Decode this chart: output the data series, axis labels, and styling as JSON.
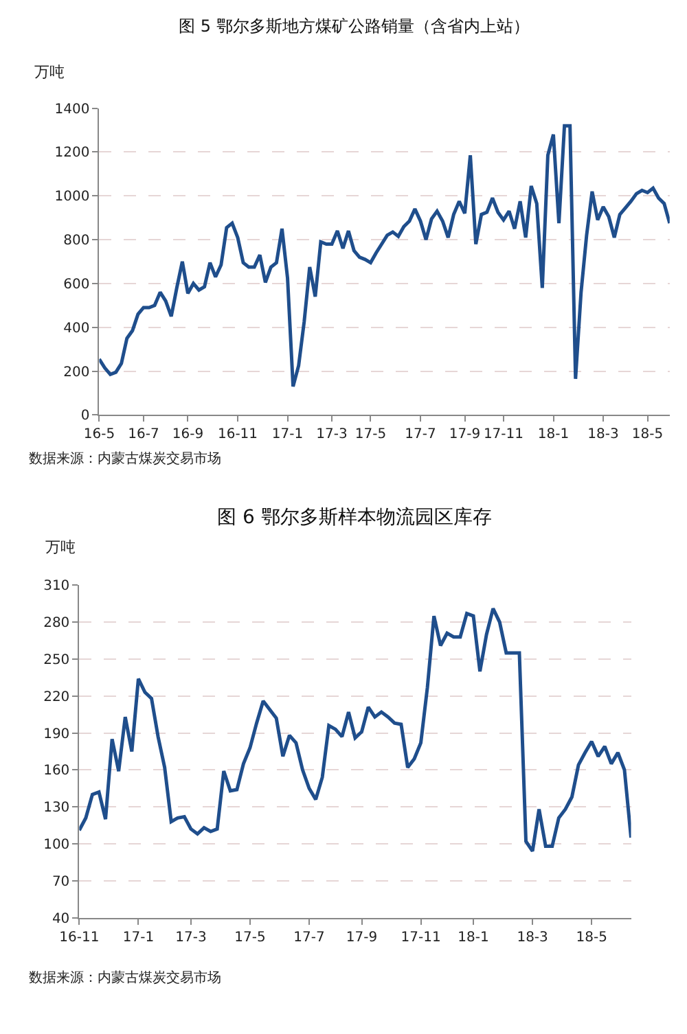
{
  "chart_data": [
    {
      "type": "line",
      "title": "图 5 鄂尔多斯地方煤矿公路销量（含省内上站）",
      "ylabel": "万吨",
      "annotations": [
        "数据来源：内蒙古煤炭交易市场"
      ],
      "grid": "y",
      "ylim": [
        0,
        1400
      ],
      "yticks": [
        0,
        200,
        400,
        600,
        800,
        1000,
        1200,
        1400
      ],
      "categories": [
        "16-5",
        null,
        null,
        null,
        null,
        null,
        null,
        null,
        "16-7",
        null,
        null,
        null,
        null,
        null,
        null,
        null,
        "16-9",
        null,
        null,
        null,
        null,
        null,
        null,
        null,
        null,
        "16-11",
        null,
        null,
        null,
        null,
        null,
        null,
        null,
        null,
        "17-1",
        null,
        null,
        null,
        null,
        null,
        null,
        null,
        "17-3",
        null,
        null,
        null,
        null,
        null,
        null,
        "17-5",
        null,
        null,
        null,
        null,
        null,
        null,
        null,
        null,
        "17-7",
        null,
        null,
        null,
        null,
        null,
        null,
        null,
        "17-9",
        null,
        null,
        null,
        null,
        null,
        null,
        "17-11",
        null,
        null,
        null,
        null,
        null,
        null,
        null,
        null,
        "18-1",
        null,
        null,
        null,
        null,
        null,
        null,
        null,
        null,
        "18-3",
        null,
        null,
        null,
        null,
        null,
        null,
        null,
        "18-5",
        null,
        null,
        null,
        null
      ],
      "series": [
        {
          "color": "#1f4e8c",
          "values": [
            255,
            215,
            185,
            195,
            235,
            350,
            385,
            460,
            490,
            490,
            500,
            560,
            520,
            450,
            580,
            700,
            555,
            600,
            570,
            585,
            695,
            630,
            685,
            855,
            875,
            810,
            695,
            675,
            675,
            730,
            605,
            675,
            695,
            850,
            625,
            130,
            225,
            425,
            675,
            540,
            790,
            780,
            780,
            840,
            760,
            840,
            750,
            720,
            710,
            695,
            740,
            780,
            820,
            835,
            815,
            860,
            885,
            940,
            885,
            800,
            895,
            930,
            885,
            810,
            915,
            975,
            920,
            1185,
            780,
            915,
            925,
            990,
            925,
            890,
            930,
            850,
            975,
            810,
            1045,
            965,
            580,
            1185,
            1280,
            875,
            1320,
            1320,
            165,
            560,
            820,
            1020,
            890,
            950,
            905,
            810,
            915,
            945,
            975,
            1010,
            1025,
            1015,
            1035,
            990,
            965,
            875
          ]
        }
      ]
    },
    {
      "type": "line",
      "title": "图 6 鄂尔多斯样本物流园区库存",
      "ylabel": "万吨",
      "annotations": [
        "数据来源：内蒙古煤炭交易市场"
      ],
      "grid": "y",
      "ylim": [
        40,
        310
      ],
      "yticks": [
        40,
        70,
        100,
        130,
        160,
        190,
        220,
        250,
        280,
        310
      ],
      "categories": [
        "16-11",
        null,
        null,
        null,
        null,
        null,
        null,
        null,
        null,
        "17-1",
        null,
        null,
        null,
        null,
        null,
        null,
        null,
        "17-3",
        null,
        null,
        null,
        null,
        null,
        null,
        null,
        null,
        "17-5",
        null,
        null,
        null,
        null,
        null,
        null,
        null,
        null,
        "17-7",
        null,
        null,
        null,
        null,
        null,
        null,
        null,
        "17-9",
        null,
        null,
        null,
        null,
        null,
        null,
        null,
        null,
        "17-11",
        null,
        null,
        null,
        null,
        null,
        null,
        null,
        "18-1",
        null,
        null,
        null,
        null,
        null,
        null,
        null,
        null,
        "18-3",
        null,
        null,
        null,
        null,
        null,
        null,
        null,
        null,
        "18-5",
        null,
        null,
        null,
        null,
        null,
        null
      ],
      "series": [
        {
          "color": "#1f4e8c",
          "values": [
            111,
            121,
            140,
            142,
            120,
            185,
            159,
            203,
            175,
            234,
            223,
            218,
            187,
            162,
            118,
            121,
            122,
            112,
            108,
            113,
            110,
            112,
            159,
            143,
            144,
            165,
            178,
            198,
            216,
            209,
            202,
            171,
            188,
            182,
            160,
            145,
            136,
            154,
            196,
            193,
            187,
            207,
            186,
            191,
            211,
            203,
            207,
            203,
            198,
            197,
            162,
            169,
            182,
            227,
            285,
            261,
            271,
            268,
            268,
            287,
            285,
            240,
            270,
            291,
            280,
            255,
            255,
            255,
            102,
            94,
            128,
            98,
            98,
            121,
            128,
            138,
            164,
            174,
            183,
            171,
            179,
            165,
            174,
            160,
            105
          ]
        }
      ]
    }
  ]
}
